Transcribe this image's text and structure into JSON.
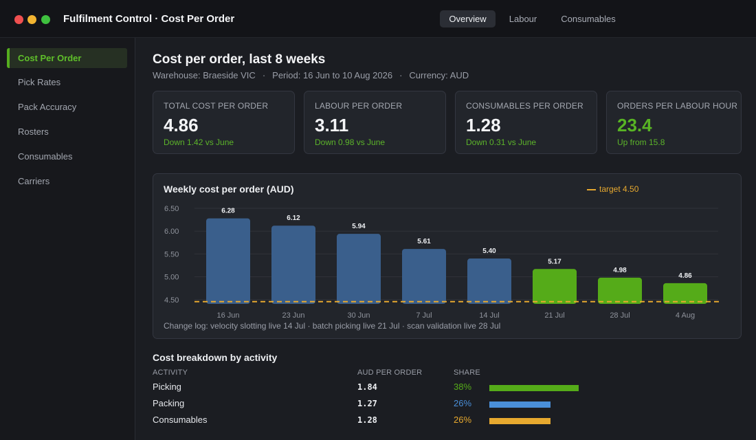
{
  "window": {
    "title": "Fulfilment Control · Cost Per Order",
    "tabs": [
      {
        "label": "Overview",
        "active": true
      },
      {
        "label": "Labour",
        "active": false
      },
      {
        "label": "Consumables",
        "active": false
      }
    ]
  },
  "sidebar": {
    "items": [
      {
        "label": "Cost Per Order",
        "active": true
      },
      {
        "label": "Pick Rates",
        "active": false
      },
      {
        "label": "Pack Accuracy",
        "active": false
      },
      {
        "label": "Rosters",
        "active": false
      },
      {
        "label": "Consumables",
        "active": false
      },
      {
        "label": "Carriers",
        "active": false
      }
    ]
  },
  "header": {
    "title": "Cost per order, last 8 weeks",
    "warehouse": "Warehouse: Braeside VIC",
    "period": "Period: 16 Jun to 10 Aug 2026",
    "currency": "Currency: AUD",
    "separator": "·"
  },
  "kpis": [
    {
      "label": "TOTAL COST PER ORDER",
      "value": "4.86",
      "delta": "Down 1.42 vs June"
    },
    {
      "label": "LABOUR PER ORDER",
      "value": "3.11",
      "delta": "Down 0.98 vs June"
    },
    {
      "label": "CONSUMABLES PER ORDER",
      "value": "1.28",
      "delta": "Down 0.31 vs June"
    },
    {
      "label": "ORDERS PER LABOUR HOUR",
      "value": "23.4",
      "delta": "Up from 15.8"
    }
  ],
  "chart": {
    "title": "Weekly cost per order (AUD)",
    "legend_label": "target 4.50",
    "change_log": "Change log: velocity slotting live 14 Jul  ·  batch picking live 21 Jul  ·  scan validation live 28 Jul"
  },
  "chart_data": {
    "type": "bar",
    "title": "Weekly cost per order (AUD)",
    "categories": [
      "16 Jun",
      "23 Jun",
      "30 Jun",
      "7 Jul",
      "14 Jul",
      "21 Jul",
      "28 Jul",
      "4 Aug"
    ],
    "values": [
      6.28,
      6.12,
      5.94,
      5.61,
      5.4,
      5.17,
      4.98,
      4.86
    ],
    "value_labels": [
      "6.28",
      "6.12",
      "5.94",
      "5.61",
      "5.40",
      "5.17",
      "4.98",
      "4.86"
    ],
    "y_ticks": [
      "6.50",
      "6.00",
      "5.50",
      "5.00",
      "4.50"
    ],
    "ylim": [
      4.4,
      6.5
    ],
    "target": 4.5,
    "grid": true,
    "legend_position": "top-right",
    "colors": {
      "before": "#3a5f8c",
      "after": "#55ab19",
      "target": "#e7a92f"
    },
    "highlight_from_index": 5
  },
  "breakdown": {
    "title": "Cost breakdown by activity",
    "headers": {
      "activity": "ACTIVITY",
      "aud": "AUD PER ORDER",
      "share": "SHARE"
    },
    "rows": [
      {
        "activity": "Picking",
        "aud": "1.84",
        "share": "38%",
        "share_value": 0.38,
        "color": "#55ab19"
      },
      {
        "activity": "Packing",
        "aud": "1.27",
        "share": "26%",
        "share_value": 0.26,
        "color": "#4a8fd9"
      },
      {
        "activity": "Consumables",
        "aud": "1.28",
        "share": "26%",
        "share_value": 0.26,
        "color": "#e7a92f"
      }
    ]
  }
}
